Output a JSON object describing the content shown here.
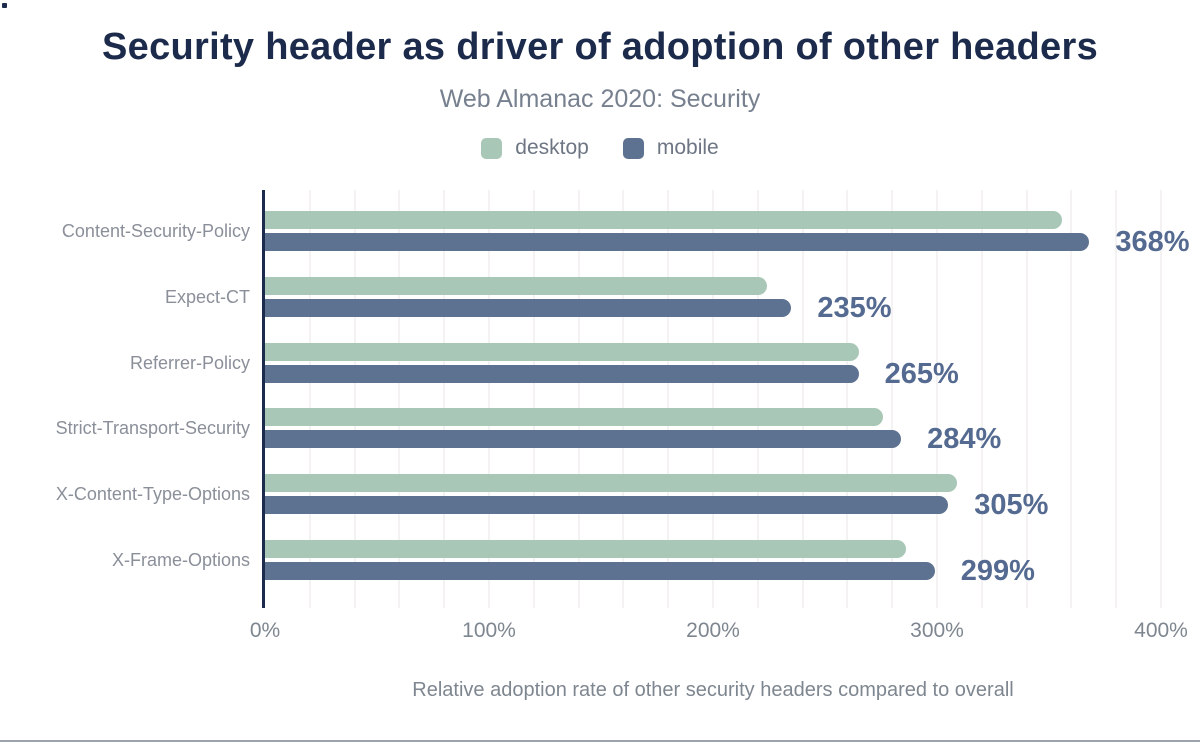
{
  "header": {
    "title": "Security header as driver of adoption of other headers",
    "subtitle": "Web Almanac 2020: Security"
  },
  "legend": {
    "items": [
      {
        "label": "desktop",
        "color": "#a9c7b7"
      },
      {
        "label": "mobile",
        "color": "#5d7190"
      }
    ]
  },
  "colors": {
    "title_navy": "#1c2b4b",
    "desktop_green": "#a9c7b7",
    "mobile_slate": "#5d7190",
    "value_label_blue": "#546a90",
    "axis_line_navy": "#1c2b4b",
    "gridline": "#f4f2f2",
    "muted_text": "#7e8690",
    "category_text": "#8a8f99",
    "footer_line": "#9ea3ab"
  },
  "chart_data": {
    "type": "bar",
    "orientation": "horizontal",
    "title": "Security header as driver of adoption of other headers",
    "subtitle": "Web Almanac 2020: Security",
    "categories": [
      "Content-Security-Policy",
      "Expect-CT",
      "Referrer-Policy",
      "Strict-Transport-Security",
      "X-Content-Type-Options",
      "X-Frame-Options"
    ],
    "series": [
      {
        "name": "desktop",
        "color": "#a9c7b7",
        "values": [
          356,
          224,
          265,
          276,
          309,
          286
        ]
      },
      {
        "name": "mobile",
        "color": "#5d7190",
        "values": [
          368,
          235,
          265,
          284,
          305,
          299
        ]
      }
    ],
    "value_labels": [
      "368%",
      "235%",
      "265%",
      "284%",
      "305%",
      "299%"
    ],
    "value_labels_for_series": "mobile",
    "xlabel": "Relative adoption rate of other security headers compared to overall",
    "ylabel": "",
    "x_ticks": [
      "0%",
      "100%",
      "200%",
      "300%",
      "400%"
    ],
    "x_tick_values": [
      0,
      100,
      200,
      300,
      400
    ],
    "xlim": [
      0,
      400
    ],
    "grid": "vertical, minor step 20%",
    "legend_position": "top"
  }
}
